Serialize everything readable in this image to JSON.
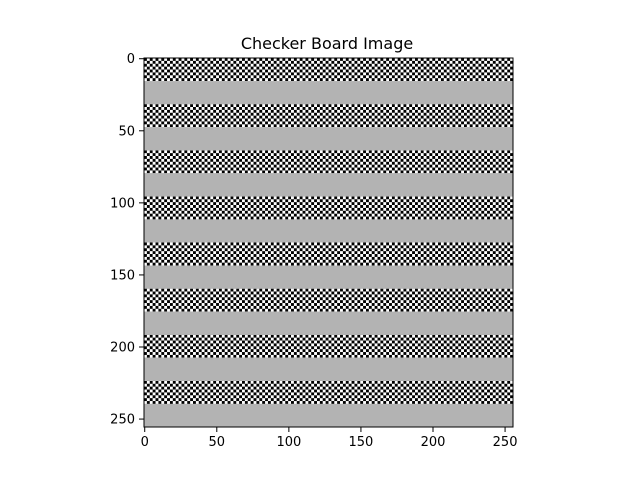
{
  "chart_data": {
    "type": "heatmap",
    "title": "Checker Board Image",
    "xlabel": "",
    "ylabel": "",
    "image_size": {
      "width": 256,
      "height": 256
    },
    "xlim": [
      0,
      256
    ],
    "ylim": [
      256,
      0
    ],
    "y_inverted": true,
    "x_ticks": [
      0,
      50,
      100,
      150,
      200,
      250
    ],
    "y_ticks": [
      0,
      50,
      100,
      150,
      200,
      250
    ],
    "x_tick_labels": [
      "0",
      "50",
      "100",
      "150",
      "200",
      "250"
    ],
    "y_tick_labels": [
      "0",
      "50",
      "100",
      "150",
      "200",
      "250"
    ],
    "checker_square_size": 2,
    "band_period": 32,
    "checker_band_rows": 16,
    "gray_band_rows": 16,
    "checker_dark_value": 0.0,
    "checker_light_value": 1.0,
    "gray_value": 0.7,
    "colormap": "gray",
    "grid": false,
    "colors": {
      "dark": "#000000",
      "light": "#ffffff",
      "gray": "#b3b3b3"
    }
  }
}
